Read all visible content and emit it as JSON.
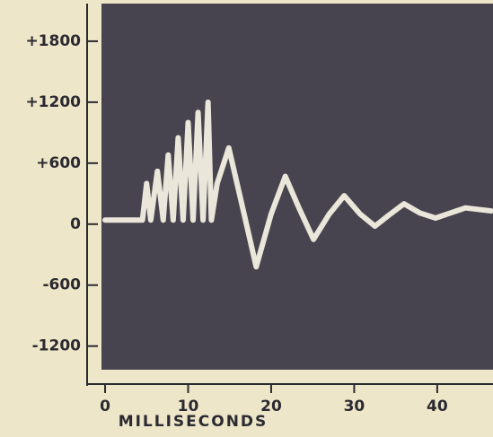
{
  "chart_data": {
    "type": "line",
    "x_label": "MILLISECONDS",
    "x": [
      0,
      4.5,
      5,
      5.5,
      6.3,
      7,
      7.6,
      8.2,
      8.8,
      9.4,
      10,
      10.6,
      11.2,
      11.8,
      12.4,
      12.8,
      13.5,
      14.9,
      16.6,
      18.2,
      20,
      21.7,
      23.4,
      25.1,
      27,
      28.8,
      30.7,
      32.5,
      34.2,
      36,
      37.9,
      39.8,
      41.6,
      43.4,
      46.5
    ],
    "series": [
      {
        "color": "#f3efe2",
        "values": [
          40,
          40,
          400,
          40,
          520,
          40,
          680,
          40,
          850,
          40,
          1000,
          40,
          1100,
          40,
          1200,
          40,
          400,
          750,
          150,
          -420,
          100,
          470,
          150,
          -150,
          100,
          280,
          100,
          -20,
          90,
          200,
          110,
          60,
          110,
          160,
          130
        ]
      }
    ],
    "xlim": [
      -0.5,
      46.5
    ],
    "xticks": [
      0,
      10,
      20,
      30,
      40
    ],
    "ylim": [
      -1450,
      2150
    ],
    "yticks": [
      {
        "value": 1800,
        "label": "+1800"
      },
      {
        "value": 1200,
        "label": "+1200"
      },
      {
        "value": 600,
        "label": "+600"
      },
      0,
      -600,
      -1200
    ]
  }
}
